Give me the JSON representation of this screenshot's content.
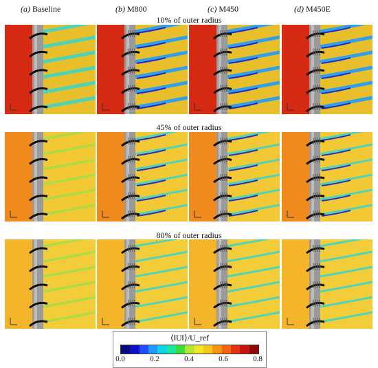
{
  "columns": [
    {
      "tag": "(a)",
      "name": "Baseline"
    },
    {
      "tag": "(b)",
      "name": "M800"
    },
    {
      "tag": "(c)",
      "name": "M450"
    },
    {
      "tag": "(d)",
      "name": "M450E"
    }
  ],
  "rows": [
    {
      "label": "10% of outer radius"
    },
    {
      "label": "45% of outer radius"
    },
    {
      "label": "80% of outer radius"
    }
  ],
  "colorbar": {
    "title": "⟨‖U‖⟩/U_ref",
    "ticks": [
      "0.0",
      "0.2",
      "0.4",
      "0.6",
      "0.8"
    ],
    "min": 0.0,
    "max": 0.8,
    "colors": [
      "#0a0a7a",
      "#1010c8",
      "#1e50ff",
      "#1e9bff",
      "#14d2e6",
      "#1ee6a0",
      "#3cdc3c",
      "#b4e632",
      "#f0e628",
      "#f5c81e",
      "#f59619",
      "#f06414",
      "#e6320f",
      "#c8140f",
      "#8c0a0a"
    ]
  }
}
